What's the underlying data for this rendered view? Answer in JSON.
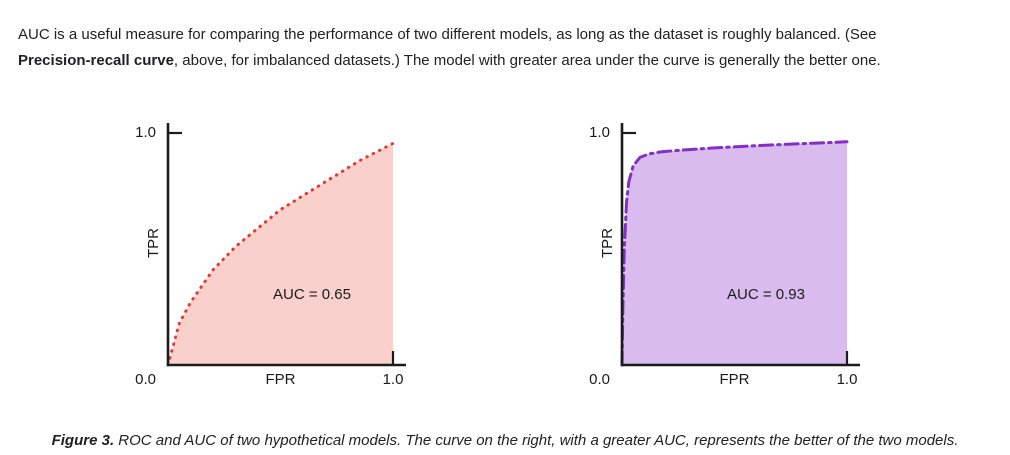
{
  "intro": {
    "text_before": "AUC is a useful measure for comparing the performance of two different models, as long as the dataset is roughly balanced. (See ",
    "emphasis": "Precision-recall curve",
    "text_after": ", above, for imbalanced datasets.) The model with greater area under the curve is generally the better one."
  },
  "caption": {
    "label": "Figure 3.",
    "text": " ROC and AUC of two hypothetical models. The curve on the right, with a greater AUC, represents the better of the two models."
  },
  "chart_data": [
    {
      "type": "area",
      "title": "",
      "xlabel": "FPR",
      "ylabel": "TPR",
      "origin_label": "0.0",
      "x_max_label": "1.0",
      "y_max_label": "1.0",
      "xlim": [
        0,
        1
      ],
      "ylim": [
        0,
        1
      ],
      "annotation": "AUC = 0.65",
      "auc": 0.65,
      "line_style": "dotted",
      "line_color": "#e5392f",
      "fill_color": "#f9d0cb",
      "x": [
        0,
        0.05,
        0.1,
        0.15,
        0.2,
        0.25,
        0.3,
        0.35,
        0.4,
        0.45,
        0.5,
        0.55,
        0.6,
        0.65,
        0.7,
        0.75,
        0.8,
        0.85,
        0.9,
        0.95,
        1.0
      ],
      "y": [
        0,
        0.18,
        0.27,
        0.34,
        0.41,
        0.46,
        0.51,
        0.55,
        0.59,
        0.63,
        0.67,
        0.7,
        0.73,
        0.76,
        0.79,
        0.82,
        0.85,
        0.88,
        0.905,
        0.93,
        0.955
      ]
    },
    {
      "type": "area",
      "title": "",
      "xlabel": "FPR",
      "ylabel": "TPR",
      "origin_label": "0.0",
      "x_max_label": "1.0",
      "y_max_label": "1.0",
      "xlim": [
        0,
        1
      ],
      "ylim": [
        0,
        1
      ],
      "annotation": "AUC = 0.93",
      "auc": 0.93,
      "line_style": "dashdot",
      "line_color": "#8430c8",
      "fill_color": "#d9bbee",
      "x": [
        0,
        0.004,
        0.01,
        0.02,
        0.03,
        0.05,
        0.08,
        0.12,
        0.18,
        0.25,
        0.35,
        0.45,
        0.55,
        0.65,
        0.75,
        0.85,
        1.0
      ],
      "y": [
        0,
        0.25,
        0.5,
        0.7,
        0.79,
        0.86,
        0.895,
        0.91,
        0.92,
        0.925,
        0.932,
        0.938,
        0.943,
        0.948,
        0.952,
        0.956,
        0.962
      ]
    }
  ]
}
